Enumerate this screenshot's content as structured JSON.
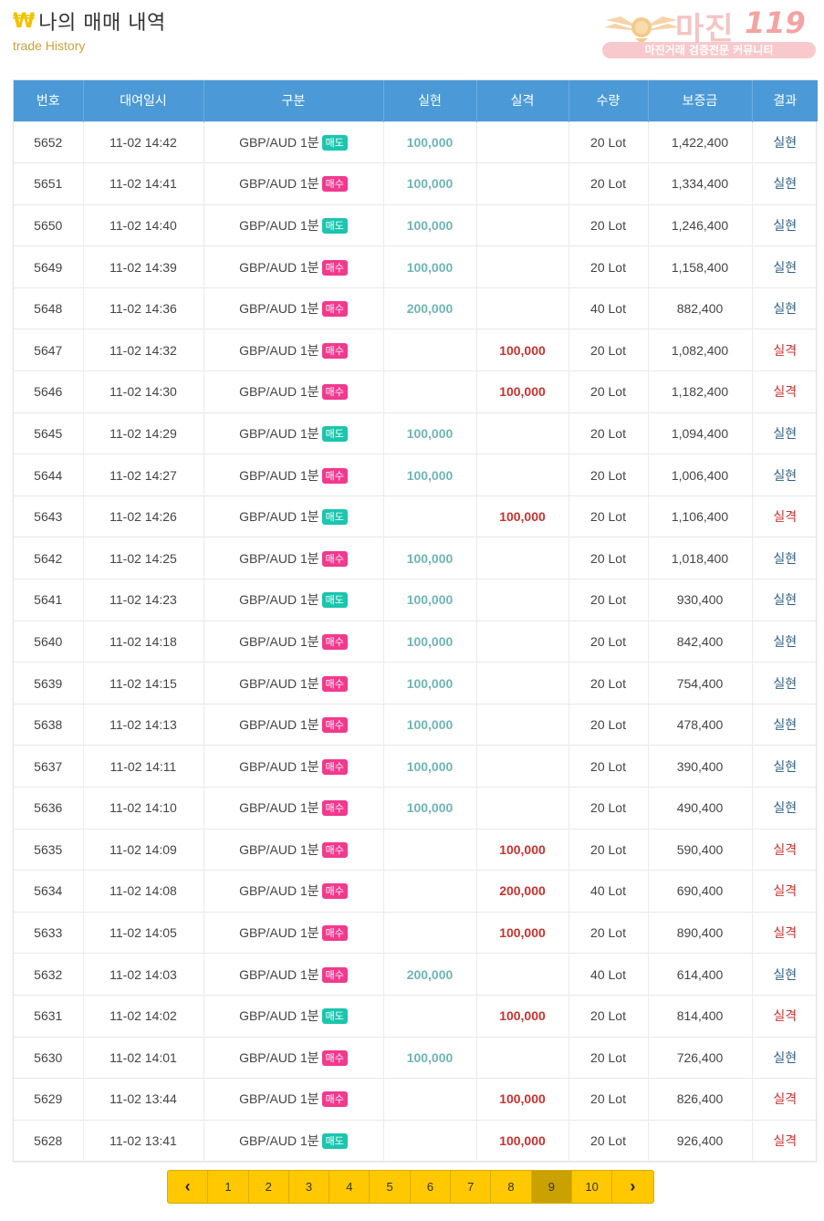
{
  "header": {
    "currency_symbol": "₩",
    "title": "나의 매매 내역",
    "subtitle": "trade History"
  },
  "logo": {
    "name": "마진",
    "number": "119",
    "tagline": "마진거래 검증전문 커뮤니티"
  },
  "table": {
    "headers": [
      "번호",
      "대여일시",
      "구분",
      "실현",
      "실격",
      "수량",
      "보증금",
      "결과"
    ],
    "rows": [
      {
        "no": "5652",
        "time": "11-02 14:42",
        "pair": "GBP/AUD 1분",
        "side": "매도",
        "realized": "100,000",
        "stopped": "",
        "qty": "20 Lot",
        "deposit": "1,422,400",
        "result": "실현"
      },
      {
        "no": "5651",
        "time": "11-02 14:41",
        "pair": "GBP/AUD 1분",
        "side": "매수",
        "realized": "100,000",
        "stopped": "",
        "qty": "20 Lot",
        "deposit": "1,334,400",
        "result": "실현"
      },
      {
        "no": "5650",
        "time": "11-02 14:40",
        "pair": "GBP/AUD 1분",
        "side": "매도",
        "realized": "100,000",
        "stopped": "",
        "qty": "20 Lot",
        "deposit": "1,246,400",
        "result": "실현"
      },
      {
        "no": "5649",
        "time": "11-02 14:39",
        "pair": "GBP/AUD 1분",
        "side": "매수",
        "realized": "100,000",
        "stopped": "",
        "qty": "20 Lot",
        "deposit": "1,158,400",
        "result": "실현"
      },
      {
        "no": "5648",
        "time": "11-02 14:36",
        "pair": "GBP/AUD 1분",
        "side": "매수",
        "realized": "200,000",
        "stopped": "",
        "qty": "40 Lot",
        "deposit": "882,400",
        "result": "실현"
      },
      {
        "no": "5647",
        "time": "11-02 14:32",
        "pair": "GBP/AUD 1분",
        "side": "매수",
        "realized": "",
        "stopped": "100,000",
        "qty": "20 Lot",
        "deposit": "1,082,400",
        "result": "실격"
      },
      {
        "no": "5646",
        "time": "11-02 14:30",
        "pair": "GBP/AUD 1분",
        "side": "매수",
        "realized": "",
        "stopped": "100,000",
        "qty": "20 Lot",
        "deposit": "1,182,400",
        "result": "실격"
      },
      {
        "no": "5645",
        "time": "11-02 14:29",
        "pair": "GBP/AUD 1분",
        "side": "매도",
        "realized": "100,000",
        "stopped": "",
        "qty": "20 Lot",
        "deposit": "1,094,400",
        "result": "실현"
      },
      {
        "no": "5644",
        "time": "11-02 14:27",
        "pair": "GBP/AUD 1분",
        "side": "매수",
        "realized": "100,000",
        "stopped": "",
        "qty": "20 Lot",
        "deposit": "1,006,400",
        "result": "실현"
      },
      {
        "no": "5643",
        "time": "11-02 14:26",
        "pair": "GBP/AUD 1분",
        "side": "매도",
        "realized": "",
        "stopped": "100,000",
        "qty": "20 Lot",
        "deposit": "1,106,400",
        "result": "실격"
      },
      {
        "no": "5642",
        "time": "11-02 14:25",
        "pair": "GBP/AUD 1분",
        "side": "매수",
        "realized": "100,000",
        "stopped": "",
        "qty": "20 Lot",
        "deposit": "1,018,400",
        "result": "실현"
      },
      {
        "no": "5641",
        "time": "11-02 14:23",
        "pair": "GBP/AUD 1분",
        "side": "매도",
        "realized": "100,000",
        "stopped": "",
        "qty": "20 Lot",
        "deposit": "930,400",
        "result": "실현"
      },
      {
        "no": "5640",
        "time": "11-02 14:18",
        "pair": "GBP/AUD 1분",
        "side": "매수",
        "realized": "100,000",
        "stopped": "",
        "qty": "20 Lot",
        "deposit": "842,400",
        "result": "실현"
      },
      {
        "no": "5639",
        "time": "11-02 14:15",
        "pair": "GBP/AUD 1분",
        "side": "매수",
        "realized": "100,000",
        "stopped": "",
        "qty": "20 Lot",
        "deposit": "754,400",
        "result": "실현"
      },
      {
        "no": "5638",
        "time": "11-02 14:13",
        "pair": "GBP/AUD 1분",
        "side": "매수",
        "realized": "100,000",
        "stopped": "",
        "qty": "20 Lot",
        "deposit": "478,400",
        "result": "실현"
      },
      {
        "no": "5637",
        "time": "11-02 14:11",
        "pair": "GBP/AUD 1분",
        "side": "매수",
        "realized": "100,000",
        "stopped": "",
        "qty": "20 Lot",
        "deposit": "390,400",
        "result": "실현"
      },
      {
        "no": "5636",
        "time": "11-02 14:10",
        "pair": "GBP/AUD 1분",
        "side": "매수",
        "realized": "100,000",
        "stopped": "",
        "qty": "20 Lot",
        "deposit": "490,400",
        "result": "실현"
      },
      {
        "no": "5635",
        "time": "11-02 14:09",
        "pair": "GBP/AUD 1분",
        "side": "매수",
        "realized": "",
        "stopped": "100,000",
        "qty": "20 Lot",
        "deposit": "590,400",
        "result": "실격"
      },
      {
        "no": "5634",
        "time": "11-02 14:08",
        "pair": "GBP/AUD 1분",
        "side": "매수",
        "realized": "",
        "stopped": "200,000",
        "qty": "40 Lot",
        "deposit": "690,400",
        "result": "실격"
      },
      {
        "no": "5633",
        "time": "11-02 14:05",
        "pair": "GBP/AUD 1분",
        "side": "매수",
        "realized": "",
        "stopped": "100,000",
        "qty": "20 Lot",
        "deposit": "890,400",
        "result": "실격"
      },
      {
        "no": "5632",
        "time": "11-02 14:03",
        "pair": "GBP/AUD 1분",
        "side": "매수",
        "realized": "200,000",
        "stopped": "",
        "qty": "40 Lot",
        "deposit": "614,400",
        "result": "실현"
      },
      {
        "no": "5631",
        "time": "11-02 14:02",
        "pair": "GBP/AUD 1분",
        "side": "매도",
        "realized": "",
        "stopped": "100,000",
        "qty": "20 Lot",
        "deposit": "814,400",
        "result": "실격"
      },
      {
        "no": "5630",
        "time": "11-02 14:01",
        "pair": "GBP/AUD 1분",
        "side": "매수",
        "realized": "100,000",
        "stopped": "",
        "qty": "20 Lot",
        "deposit": "726,400",
        "result": "실현"
      },
      {
        "no": "5629",
        "time": "11-02 13:44",
        "pair": "GBP/AUD 1분",
        "side": "매수",
        "realized": "",
        "stopped": "100,000",
        "qty": "20 Lot",
        "deposit": "826,400",
        "result": "실격"
      },
      {
        "no": "5628",
        "time": "11-02 13:41",
        "pair": "GBP/AUD 1분",
        "side": "매도",
        "realized": "",
        "stopped": "100,000",
        "qty": "20 Lot",
        "deposit": "926,400",
        "result": "실격"
      }
    ]
  },
  "pagination": {
    "prev_icon": "chevron-left-icon",
    "next_icon": "chevron-right-icon",
    "prev_glyph": "‹",
    "next_glyph": "›",
    "pages": [
      "1",
      "2",
      "3",
      "4",
      "5",
      "6",
      "7",
      "8",
      "9",
      "10"
    ],
    "current": "9"
  },
  "colors": {
    "header_bg": "#4b9ad7",
    "sell_badge": "#1bc5ae",
    "buy_badge": "#f2398e",
    "realized_text": "#6fb5b5",
    "stopped_text": "#c9322f",
    "pagination_bg": "#ffc800",
    "pagination_active": "#c9a100"
  }
}
